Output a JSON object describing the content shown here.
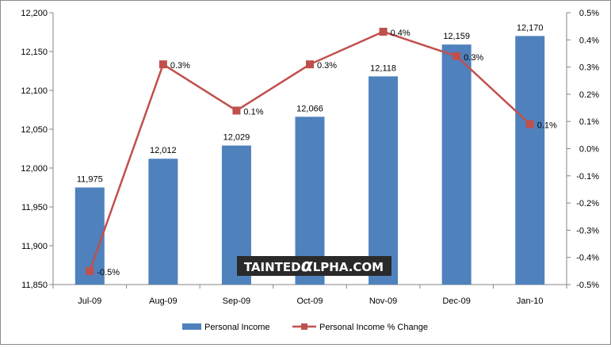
{
  "chart_data": {
    "type": "bar",
    "title": "",
    "categories": [
      "Jul-09",
      "Aug-09",
      "Sep-09",
      "Oct-09",
      "Nov-09",
      "Dec-09",
      "Jan-10"
    ],
    "series": [
      {
        "name": "Personal Income",
        "type": "bar",
        "axis": "left",
        "color": "#4f81bd",
        "values": [
          11975,
          12012,
          12029,
          12066,
          12118,
          12159,
          12170
        ],
        "labels": [
          "11,975",
          "12,012",
          "12,029",
          "12,066",
          "12,118",
          "12,159",
          "12,170"
        ]
      },
      {
        "name": "Personal Income % Change",
        "type": "line",
        "axis": "right",
        "color": "#c0504d",
        "values": [
          -0.45,
          0.31,
          0.14,
          0.31,
          0.43,
          0.34,
          0.09
        ],
        "labels": [
          "-0.5%",
          "0.3%",
          "0.1%",
          "0.3%",
          "0.4%",
          "0.3%",
          "0.1%"
        ]
      }
    ],
    "left_axis": {
      "min": 11850,
      "max": 12200,
      "step": 50,
      "tick_labels": [
        "11,850",
        "11,900",
        "11,950",
        "12,000",
        "12,050",
        "12,100",
        "12,150",
        "12,200"
      ]
    },
    "right_axis": {
      "min": -0.5,
      "max": 0.5,
      "step": 0.1,
      "tick_labels": [
        "-0.5%",
        "-0.4%",
        "-0.3%",
        "-0.2%",
        "-0.1%",
        "0.0%",
        "0.1%",
        "0.2%",
        "0.3%",
        "0.4%",
        "0.5%"
      ]
    },
    "grid": false,
    "legend_position": "bottom"
  },
  "watermark": {
    "prefix": "TAINTED",
    "glyph": "α",
    "suffix": "LPHA.COM"
  }
}
